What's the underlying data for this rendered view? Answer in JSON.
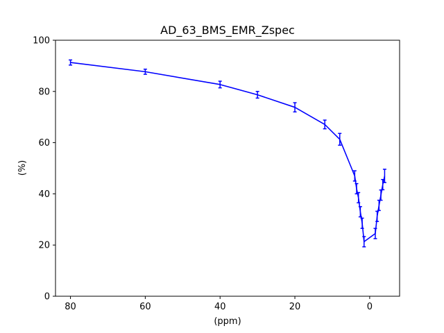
{
  "chart_data": {
    "type": "line",
    "title": "AD_63_BMS_EMR_Zspec",
    "xlabel": "(ppm)",
    "ylabel": "(%)",
    "xlim": [
      84,
      -8
    ],
    "ylim": [
      0,
      100
    ],
    "x_ticks": [
      80,
      60,
      40,
      20,
      0
    ],
    "y_ticks": [
      0,
      20,
      40,
      60,
      80,
      100
    ],
    "x_tick_labels": [
      "80",
      "60",
      "40",
      "20",
      "0"
    ],
    "y_tick_labels": [
      "0",
      "20",
      "40",
      "60",
      "80",
      "100"
    ],
    "grid": false,
    "series": [
      {
        "color": "#0000ff",
        "x": [
          80,
          60,
          40,
          30,
          20,
          12,
          8,
          4,
          3.5,
          3,
          2.5,
          2,
          1.5,
          -1.5,
          -2,
          -2.5,
          -3,
          -3.5,
          -4
        ],
        "y": [
          91.3,
          87.7,
          82.7,
          78.7,
          73.8,
          67.1,
          61.3,
          47.0,
          42.0,
          38.5,
          33.0,
          28.5,
          21.3,
          24.5,
          31.2,
          35.5,
          39.5,
          43.6,
          47.0
        ],
        "err": [
          1.0,
          1.0,
          1.3,
          1.3,
          1.8,
          1.7,
          2.3,
          2.0,
          2.0,
          2.0,
          2.0,
          2.0,
          2.0,
          2.0,
          2.0,
          2.0,
          2.0,
          2.0,
          2.6
        ]
      }
    ]
  }
}
